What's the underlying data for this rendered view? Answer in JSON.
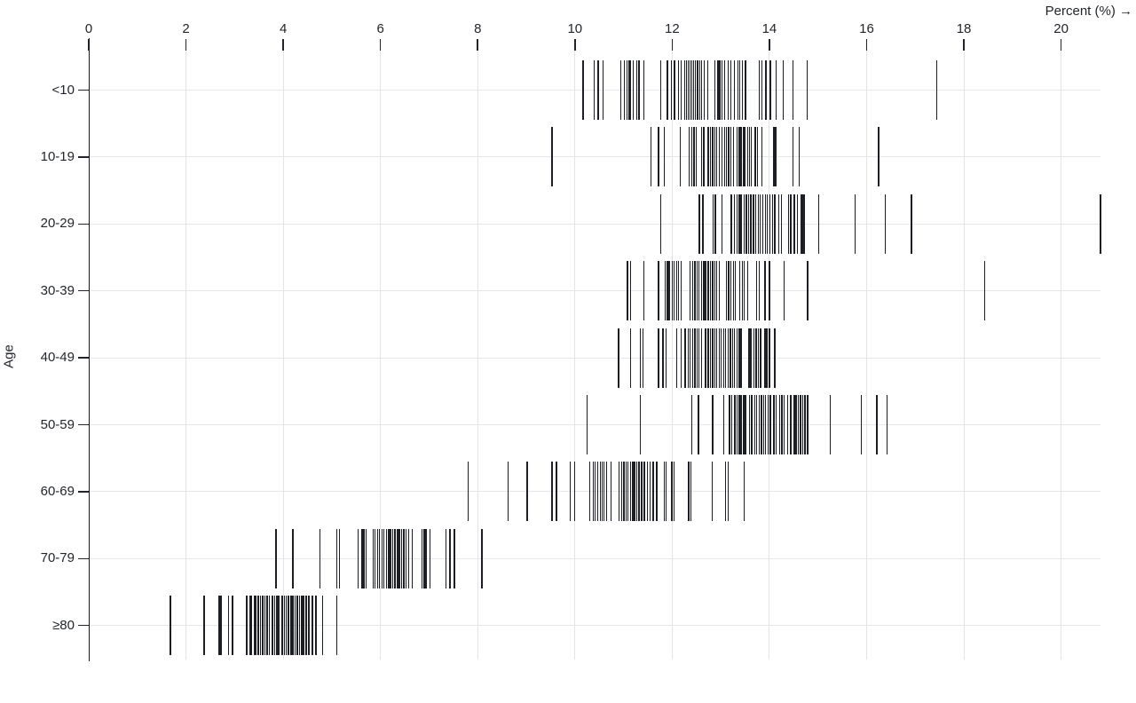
{
  "chart_data": {
    "type": "tick",
    "title": "",
    "xlabel": "Percent (%) →",
    "ylabel": "Age",
    "x_domain": [
      0,
      20.81
    ],
    "x_ticks": [
      0,
      2,
      4,
      6,
      8,
      10,
      12,
      14,
      16,
      18,
      20
    ],
    "grid": true,
    "legend": "none",
    "categories": [
      "<10",
      "10-19",
      "20-29",
      "30-39",
      "40-49",
      "50-59",
      "60-69",
      "70-79",
      "≥80"
    ],
    "series": [
      {
        "name": "<10",
        "values": [
          10.17,
          10.4,
          10.48,
          10.58,
          10.94,
          11.02,
          11.07,
          11.12,
          11.15,
          11.2,
          11.27,
          11.32,
          11.42,
          11.76,
          11.9,
          11.98,
          12.05,
          12.13,
          12.19,
          12.26,
          12.29,
          12.33,
          12.37,
          12.4,
          12.44,
          12.48,
          12.52,
          12.57,
          12.61,
          12.66,
          12.73,
          12.88,
          12.94,
          12.98,
          13.03,
          13.08,
          13.15,
          13.21,
          13.28,
          13.35,
          13.39,
          13.45,
          13.51,
          13.79,
          13.85,
          13.93,
          14.02,
          14.14,
          14.28,
          14.48,
          14.78,
          17.44
        ]
      },
      {
        "name": "10-19",
        "values": [
          9.53,
          11.57,
          11.72,
          11.84,
          12.17,
          12.35,
          12.4,
          12.45,
          12.49,
          12.6,
          12.65,
          12.74,
          12.79,
          12.83,
          12.88,
          12.92,
          12.97,
          13.03,
          13.08,
          13.12,
          13.16,
          13.21,
          13.26,
          13.33,
          13.38,
          13.42,
          13.47,
          13.5,
          13.55,
          13.59,
          13.63,
          13.71,
          13.75,
          13.85,
          14.09,
          14.13,
          14.49,
          14.61,
          16.25
        ]
      },
      {
        "name": "20-29",
        "values": [
          11.77,
          12.56,
          12.63,
          12.84,
          12.89,
          13.03,
          13.22,
          13.28,
          13.33,
          13.38,
          13.42,
          13.48,
          13.53,
          13.57,
          13.62,
          13.67,
          13.72,
          13.77,
          13.81,
          13.87,
          13.92,
          13.96,
          14.01,
          14.06,
          14.11,
          14.19,
          14.25,
          14.39,
          14.44,
          14.51,
          14.58,
          14.65,
          14.68,
          14.71,
          15.01,
          15.76,
          16.38,
          16.92,
          20.81
        ]
      },
      {
        "name": "30-39",
        "values": [
          11.08,
          11.15,
          11.42,
          11.72,
          11.86,
          11.9,
          11.94,
          12.0,
          12.04,
          12.09,
          12.13,
          12.18,
          12.37,
          12.42,
          12.47,
          12.51,
          12.55,
          12.6,
          12.65,
          12.69,
          12.74,
          12.79,
          12.83,
          12.88,
          12.92,
          12.97,
          13.12,
          13.16,
          13.21,
          13.26,
          13.3,
          13.39,
          13.44,
          13.48,
          13.55,
          13.74,
          13.79,
          13.91,
          14.0,
          14.3,
          14.79,
          18.43
        ]
      },
      {
        "name": "40-49",
        "values": [
          10.9,
          11.14,
          11.34,
          11.4,
          11.72,
          11.81,
          11.88,
          12.09,
          12.19,
          12.27,
          12.33,
          12.37,
          12.42,
          12.47,
          12.51,
          12.55,
          12.6,
          12.69,
          12.74,
          12.79,
          12.83,
          12.88,
          12.92,
          12.97,
          13.01,
          13.06,
          13.1,
          13.15,
          13.2,
          13.24,
          13.28,
          13.33,
          13.38,
          13.42,
          13.58,
          13.62,
          13.68,
          13.73,
          13.77,
          13.82,
          13.91,
          13.95,
          14.0,
          14.11
        ]
      },
      {
        "name": "50-59",
        "values": [
          10.25,
          11.34,
          12.4,
          12.54,
          12.83,
          13.06,
          13.18,
          13.23,
          13.29,
          13.33,
          13.38,
          13.42,
          13.47,
          13.51,
          13.59,
          13.64,
          13.7,
          13.74,
          13.79,
          13.84,
          13.88,
          13.92,
          13.97,
          14.02,
          14.09,
          14.14,
          14.21,
          14.26,
          14.3,
          14.38,
          14.44,
          14.51,
          14.55,
          14.59,
          14.64,
          14.69,
          14.73,
          14.79,
          15.25,
          15.89,
          16.21,
          16.42
        ]
      },
      {
        "name": "60-69",
        "values": [
          7.8,
          8.63,
          9.02,
          9.53,
          9.62,
          9.9,
          9.99,
          10.3,
          10.38,
          10.42,
          10.47,
          10.52,
          10.56,
          10.6,
          10.65,
          10.74,
          10.91,
          10.96,
          11.01,
          11.05,
          11.09,
          11.14,
          11.19,
          11.23,
          11.27,
          11.32,
          11.37,
          11.43,
          11.49,
          11.55,
          11.61,
          11.68,
          11.84,
          11.88,
          11.99,
          12.04,
          12.34,
          12.39,
          12.82,
          13.1,
          13.15,
          13.48
        ]
      },
      {
        "name": "70-79",
        "values": [
          3.85,
          4.2,
          4.75,
          5.1,
          5.16,
          5.54,
          5.62,
          5.66,
          5.7,
          5.85,
          5.89,
          5.94,
          5.98,
          6.03,
          6.07,
          6.12,
          6.17,
          6.21,
          6.25,
          6.3,
          6.35,
          6.39,
          6.43,
          6.48,
          6.53,
          6.58,
          6.65,
          6.85,
          6.9,
          6.94,
          7.02,
          7.35,
          7.43,
          7.52,
          8.09
        ]
      },
      {
        "name": "≥80",
        "values": [
          1.68,
          2.37,
          2.68,
          2.72,
          2.88,
          2.96,
          3.25,
          3.31,
          3.34,
          3.4,
          3.43,
          3.49,
          3.53,
          3.58,
          3.62,
          3.67,
          3.71,
          3.78,
          3.82,
          3.87,
          3.91,
          3.98,
          4.02,
          4.06,
          4.11,
          4.16,
          4.2,
          4.24,
          4.29,
          4.34,
          4.38,
          4.42,
          4.47,
          4.53,
          4.6,
          4.67,
          4.81,
          5.1
        ]
      }
    ]
  },
  "colors": {
    "tick": "#1b1f25",
    "zero_rule": "#171b21",
    "grid": "#e5e5e5",
    "axis_text": "#22262c",
    "background": "#ffffff"
  }
}
